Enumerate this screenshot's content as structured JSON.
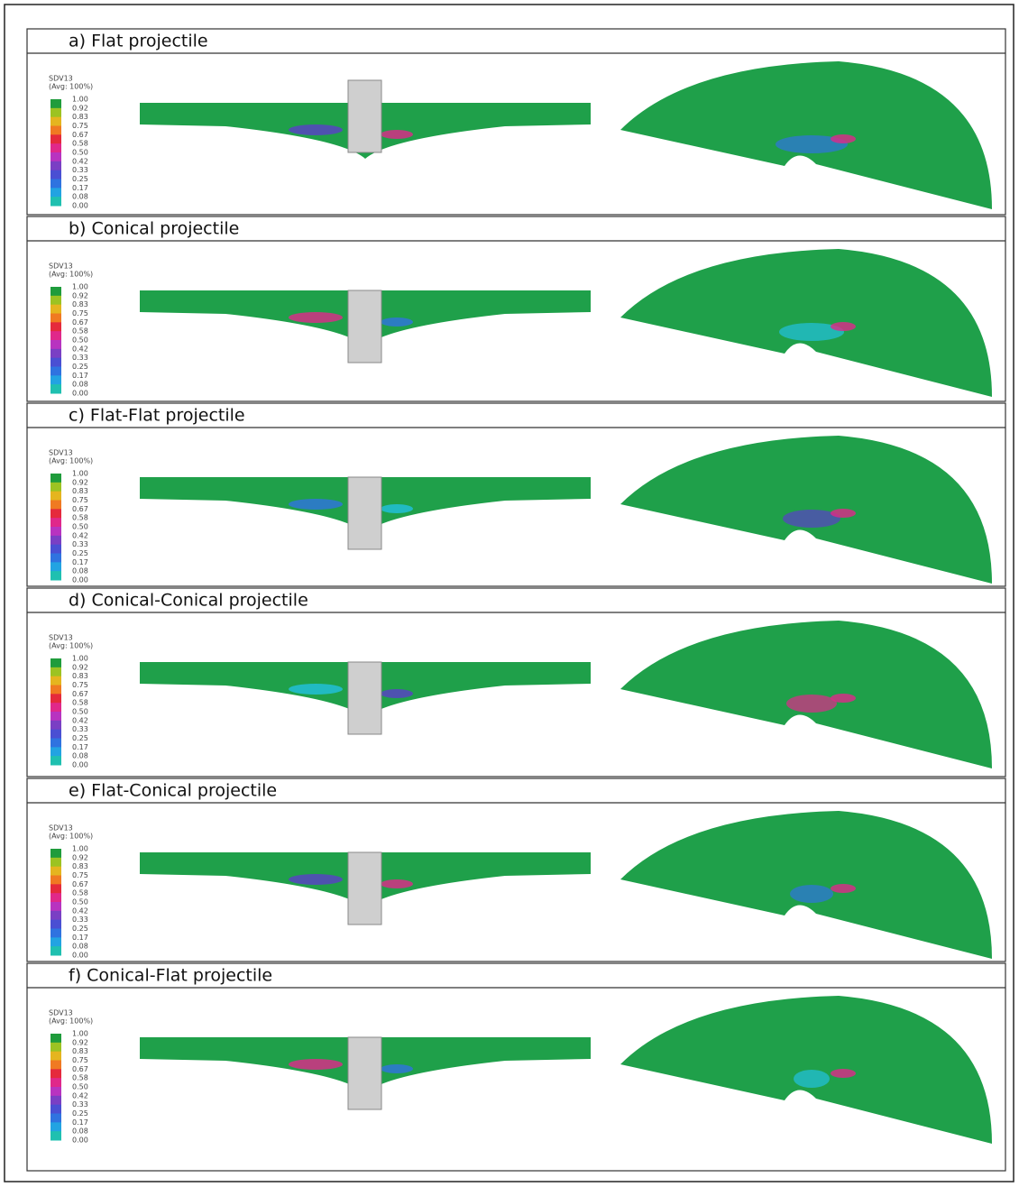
{
  "panels": [
    {
      "label": "a) Flat projectile"
    },
    {
      "label": "b) Conical projectile"
    },
    {
      "label": "c) Flat-Flat projectile"
    },
    {
      "label": "d) Conical-Conical projectile"
    },
    {
      "label": "e) Flat-Conical projectile"
    },
    {
      "label": "f) Conical-Flat projectile"
    }
  ],
  "legend": {
    "title": "SDV13",
    "subtitle": "(Avg: 100%)",
    "ticks": [
      "1.00",
      "0.92",
      "0.83",
      "0.75",
      "0.67",
      "0.58",
      "0.50",
      "0.42",
      "0.33",
      "0.25",
      "0.17",
      "0.08",
      "0.00"
    ]
  }
}
